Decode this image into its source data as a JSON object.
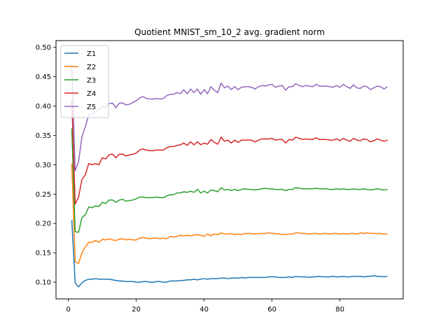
{
  "chart_data": {
    "type": "line",
    "title": "Quotient MNIST_sm_10_2 avg. gradient norm",
    "xlabel": "",
    "ylabel": "",
    "xlim": [
      -3.65,
      98.65
    ],
    "ylim": [
      0.0715,
      0.5115
    ],
    "x_ticks": [
      0,
      20,
      40,
      60,
      80
    ],
    "y_ticks": [
      0.1,
      0.15,
      0.2,
      0.25,
      0.3,
      0.35,
      0.4,
      0.45,
      0.5
    ],
    "grid": false,
    "legend_position": "top-left",
    "x_start": 1,
    "x_step": 1,
    "series": [
      {
        "name": "Z1",
        "color": "#1f77b4",
        "values": [
          0.206,
          0.099,
          0.092,
          0.099,
          0.103,
          0.105,
          0.105,
          0.106,
          0.105,
          0.105,
          0.105,
          0.105,
          0.104,
          0.103,
          0.102,
          0.102,
          0.101,
          0.101,
          0.101,
          0.1,
          0.1,
          0.101,
          0.101,
          0.1,
          0.1,
          0.101,
          0.101,
          0.1,
          0.1,
          0.102,
          0.102,
          0.102,
          0.103,
          0.103,
          0.104,
          0.104,
          0.105,
          0.104,
          0.105,
          0.106,
          0.105,
          0.106,
          0.106,
          0.106,
          0.107,
          0.107,
          0.106,
          0.107,
          0.107,
          0.107,
          0.108,
          0.107,
          0.108,
          0.108,
          0.108,
          0.108,
          0.108,
          0.108,
          0.109,
          0.109,
          0.109,
          0.108,
          0.108,
          0.108,
          0.109,
          0.108,
          0.11,
          0.109,
          0.109,
          0.109,
          0.108,
          0.109,
          0.109,
          0.11,
          0.109,
          0.109,
          0.109,
          0.11,
          0.109,
          0.109,
          0.11,
          0.109,
          0.109,
          0.11,
          0.11,
          0.11,
          0.109,
          0.11,
          0.11,
          0.111,
          0.11,
          0.11,
          0.109,
          0.11
        ]
      },
      {
        "name": "Z2",
        "color": "#ff7f0e",
        "values": [
          0.302,
          0.135,
          0.132,
          0.15,
          0.16,
          0.168,
          0.168,
          0.171,
          0.168,
          0.173,
          0.172,
          0.174,
          0.172,
          0.171,
          0.173,
          0.174,
          0.172,
          0.173,
          0.172,
          0.172,
          0.175,
          0.176,
          0.175,
          0.174,
          0.175,
          0.175,
          0.174,
          0.175,
          0.174,
          0.178,
          0.177,
          0.178,
          0.18,
          0.179,
          0.18,
          0.179,
          0.18,
          0.181,
          0.18,
          0.178,
          0.182,
          0.179,
          0.182,
          0.181,
          0.184,
          0.182,
          0.182,
          0.183,
          0.181,
          0.182,
          0.181,
          0.183,
          0.183,
          0.183,
          0.182,
          0.183,
          0.183,
          0.183,
          0.184,
          0.183,
          0.183,
          0.182,
          0.181,
          0.181,
          0.182,
          0.182,
          0.184,
          0.184,
          0.183,
          0.183,
          0.182,
          0.183,
          0.183,
          0.182,
          0.183,
          0.183,
          0.182,
          0.183,
          0.183,
          0.182,
          0.183,
          0.182,
          0.183,
          0.183,
          0.182,
          0.184,
          0.183,
          0.184,
          0.183,
          0.183,
          0.183,
          0.183,
          0.182,
          0.182
        ]
      },
      {
        "name": "Z3",
        "color": "#2ca02c",
        "values": [
          0.362,
          0.186,
          0.185,
          0.21,
          0.215,
          0.228,
          0.227,
          0.23,
          0.229,
          0.236,
          0.234,
          0.24,
          0.24,
          0.236,
          0.24,
          0.241,
          0.238,
          0.239,
          0.24,
          0.242,
          0.245,
          0.245,
          0.244,
          0.244,
          0.244,
          0.245,
          0.244,
          0.244,
          0.247,
          0.249,
          0.249,
          0.252,
          0.252,
          0.254,
          0.253,
          0.255,
          0.253,
          0.258,
          0.252,
          0.255,
          0.252,
          0.257,
          0.256,
          0.254,
          0.261,
          0.257,
          0.258,
          0.256,
          0.258,
          0.256,
          0.258,
          0.259,
          0.258,
          0.258,
          0.257,
          0.258,
          0.259,
          0.26,
          0.259,
          0.259,
          0.258,
          0.258,
          0.258,
          0.256,
          0.258,
          0.258,
          0.261,
          0.26,
          0.259,
          0.259,
          0.259,
          0.259,
          0.26,
          0.259,
          0.259,
          0.259,
          0.258,
          0.258,
          0.259,
          0.258,
          0.259,
          0.258,
          0.258,
          0.259,
          0.258,
          0.258,
          0.259,
          0.258,
          0.257,
          0.258,
          0.259,
          0.258,
          0.257,
          0.258
        ]
      },
      {
        "name": "Z4",
        "color": "#d62728",
        "values": [
          0.41,
          0.233,
          0.245,
          0.275,
          0.283,
          0.302,
          0.3,
          0.302,
          0.3,
          0.312,
          0.31,
          0.317,
          0.318,
          0.312,
          0.318,
          0.318,
          0.315,
          0.317,
          0.318,
          0.32,
          0.325,
          0.327,
          0.325,
          0.324,
          0.324,
          0.325,
          0.325,
          0.325,
          0.329,
          0.331,
          0.331,
          0.333,
          0.334,
          0.337,
          0.333,
          0.339,
          0.334,
          0.339,
          0.334,
          0.337,
          0.335,
          0.343,
          0.338,
          0.335,
          0.347,
          0.34,
          0.342,
          0.337,
          0.342,
          0.338,
          0.342,
          0.342,
          0.342,
          0.342,
          0.339,
          0.342,
          0.344,
          0.344,
          0.344,
          0.345,
          0.342,
          0.343,
          0.343,
          0.337,
          0.343,
          0.342,
          0.347,
          0.345,
          0.343,
          0.344,
          0.343,
          0.343,
          0.346,
          0.343,
          0.343,
          0.343,
          0.342,
          0.342,
          0.344,
          0.341,
          0.345,
          0.342,
          0.34,
          0.345,
          0.342,
          0.341,
          0.344,
          0.343,
          0.339,
          0.341,
          0.344,
          0.342,
          0.34,
          0.342
        ]
      },
      {
        "name": "Z5",
        "color": "#9467bd",
        "values": [
          0.47,
          0.29,
          0.305,
          0.348,
          0.365,
          0.385,
          0.386,
          0.39,
          0.394,
          0.4,
          0.398,
          0.404,
          0.405,
          0.397,
          0.405,
          0.405,
          0.402,
          0.403,
          0.406,
          0.409,
          0.414,
          0.416,
          0.413,
          0.412,
          0.412,
          0.413,
          0.412,
          0.413,
          0.418,
          0.42,
          0.42,
          0.423,
          0.421,
          0.428,
          0.421,
          0.429,
          0.423,
          0.429,
          0.42,
          0.428,
          0.421,
          0.433,
          0.427,
          0.423,
          0.439,
          0.431,
          0.434,
          0.428,
          0.433,
          0.428,
          0.432,
          0.433,
          0.433,
          0.432,
          0.429,
          0.433,
          0.435,
          0.434,
          0.436,
          0.437,
          0.432,
          0.434,
          0.435,
          0.427,
          0.433,
          0.433,
          0.438,
          0.435,
          0.433,
          0.435,
          0.434,
          0.433,
          0.437,
          0.434,
          0.434,
          0.434,
          0.433,
          0.432,
          0.435,
          0.432,
          0.437,
          0.433,
          0.43,
          0.436,
          0.431,
          0.43,
          0.434,
          0.433,
          0.428,
          0.431,
          0.434,
          0.433,
          0.429,
          0.433
        ]
      }
    ]
  }
}
